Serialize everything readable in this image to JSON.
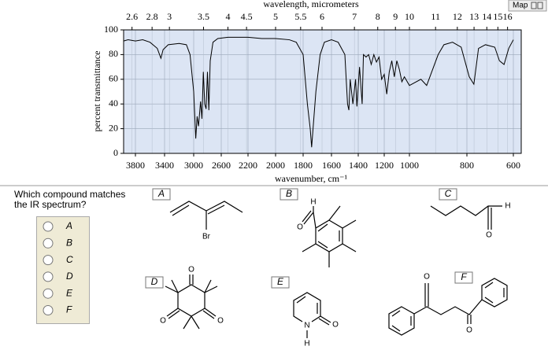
{
  "map_button": "Map",
  "chart_data": {
    "type": "line",
    "x_label_top": "wavelength, micrometers",
    "x_label": "wavenumber, cm⁻¹",
    "y_label": "percent transmittance",
    "x": [
      3960,
      3900,
      3800,
      3700,
      3600,
      3500,
      3450,
      3420,
      3350,
      3200,
      3100,
      3050,
      3000,
      2970,
      2950,
      2930,
      2900,
      2880,
      2860,
      2840,
      2820,
      2800,
      2780,
      2760,
      2720,
      2650,
      2500,
      2300,
      2200,
      2100,
      2000,
      1900,
      1850,
      1800,
      1770,
      1750,
      1740,
      1730,
      1710,
      1680,
      1650,
      1600,
      1550,
      1500,
      1480,
      1470,
      1460,
      1440,
      1420,
      1410,
      1390,
      1370,
      1360,
      1340,
      1320,
      1300,
      1280,
      1260,
      1240,
      1220,
      1200,
      1180,
      1160,
      1140,
      1120,
      1100,
      1080,
      1060,
      1040,
      1000,
      960,
      940,
      900,
      880,
      850,
      820,
      790,
      770,
      750,
      720,
      680,
      660,
      640,
      620,
      600
    ],
    "values": [
      91,
      92,
      91,
      92,
      90,
      85,
      77,
      84,
      88,
      89,
      88,
      80,
      50,
      12,
      30,
      22,
      42,
      28,
      66,
      40,
      36,
      66,
      35,
      75,
      90,
      93,
      94,
      94,
      94,
      93,
      93,
      92,
      90,
      80,
      40,
      20,
      5,
      20,
      50,
      80,
      90,
      92,
      90,
      80,
      40,
      35,
      60,
      40,
      60,
      38,
      70,
      40,
      80,
      78,
      80,
      72,
      80,
      74,
      78,
      60,
      64,
      48,
      66,
      75,
      62,
      75,
      68,
      58,
      62,
      55,
      60,
      55,
      80,
      88,
      90,
      86,
      62,
      56,
      85,
      88,
      86,
      75,
      72,
      85,
      92
    ],
    "color": "#000000",
    "xlim": [
      3960,
      580
    ],
    "xticks": [
      3800,
      3400,
      3000,
      2600,
      2200,
      2000,
      1800,
      1600,
      1400,
      1200,
      1000,
      800,
      600
    ],
    "x2ticks": [
      2.6,
      2.8,
      3,
      3.5,
      4,
      4.5,
      5,
      5.5,
      6,
      7,
      8,
      9,
      10,
      11,
      12,
      13,
      14,
      15,
      16
    ],
    "ylim": [
      0,
      100
    ],
    "yticks": [
      0,
      20,
      40,
      60,
      80,
      100
    ],
    "grid": true
  },
  "question": {
    "text": "Which compound matches the IR spectrum?",
    "options": [
      "A",
      "B",
      "C",
      "D",
      "E",
      "F"
    ]
  },
  "structures": [
    {
      "label": "A",
      "atoms": [
        "Br"
      ]
    },
    {
      "label": "B",
      "atoms": [
        "H",
        "O"
      ]
    },
    {
      "label": "C",
      "atoms": [
        "H",
        "O"
      ]
    },
    {
      "label": "D",
      "atoms": [
        "O",
        "O",
        "O"
      ]
    },
    {
      "label": "E",
      "atoms": [
        "N",
        "H",
        "O"
      ]
    },
    {
      "label": "F",
      "atoms": [
        "O",
        "O"
      ]
    }
  ]
}
